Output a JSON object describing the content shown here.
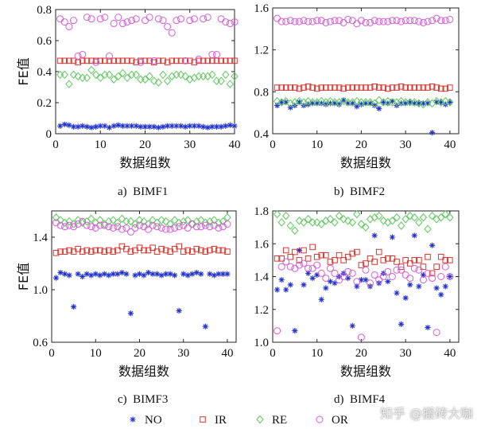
{
  "figure": {
    "watermark": "知乎 @搬砖大咖",
    "captions": [
      "a)  BIMF1",
      "b)  BIMF2",
      "c)  BIMF3",
      "d)  BIMF4"
    ],
    "legend": [
      {
        "name": "NO",
        "marker": "asterisk",
        "color": "#2233d0"
      },
      {
        "name": "IR",
        "marker": "square",
        "color": "#d8352e"
      },
      {
        "name": "RE",
        "marker": "diamond",
        "color": "#5cc85c"
      },
      {
        "name": "OR",
        "marker": "circle",
        "color": "#d65bd6"
      }
    ]
  },
  "chart_data": [
    {
      "type": "scatter",
      "title": "a)  BIMF1",
      "xlabel": "数据组数",
      "ylabel": "FE值",
      "xlim": [
        0,
        40
      ],
      "ylim": [
        0,
        0.8
      ],
      "grid": false,
      "xticks": [
        "0",
        "10",
        "20",
        "30",
        "40"
      ],
      "yticks": [
        "0",
        "0.2",
        "0.4",
        "0.6",
        "0.8"
      ],
      "x": [
        1,
        2,
        3,
        4,
        5,
        6,
        7,
        8,
        9,
        10,
        11,
        12,
        13,
        14,
        15,
        16,
        17,
        18,
        19,
        20,
        21,
        22,
        23,
        24,
        25,
        26,
        27,
        28,
        29,
        30,
        31,
        32,
        33,
        34,
        35,
        36,
        37,
        38,
        39,
        40
      ],
      "series": [
        {
          "name": "NO",
          "values": [
            0.05,
            0.06,
            0.055,
            0.045,
            0.045,
            0.05,
            0.045,
            0.04,
            0.045,
            0.05,
            0.05,
            0.04,
            0.05,
            0.055,
            0.05,
            0.05,
            0.05,
            0.05,
            0.045,
            0.045,
            0.045,
            0.045,
            0.04,
            0.045,
            0.05,
            0.05,
            0.05,
            0.05,
            0.045,
            0.05,
            0.05,
            0.05,
            0.045,
            0.04,
            0.045,
            0.045,
            0.045,
            0.05,
            0.055,
            0.05
          ]
        },
        {
          "name": "IR",
          "values": [
            0.47,
            0.47,
            0.47,
            0.47,
            0.46,
            0.47,
            0.47,
            0.47,
            0.47,
            0.47,
            0.47,
            0.47,
            0.47,
            0.47,
            0.47,
            0.47,
            0.47,
            0.46,
            0.47,
            0.47,
            0.47,
            0.46,
            0.47,
            0.47,
            0.46,
            0.47,
            0.47,
            0.47,
            0.47,
            0.47,
            0.46,
            0.47,
            0.47,
            0.47,
            0.47,
            0.47,
            0.47,
            0.47,
            0.47,
            0.47
          ]
        },
        {
          "name": "RE",
          "values": [
            0.38,
            0.38,
            0.32,
            0.38,
            0.37,
            0.36,
            0.36,
            0.41,
            0.38,
            0.36,
            0.38,
            0.38,
            0.35,
            0.37,
            0.39,
            0.36,
            0.38,
            0.38,
            0.35,
            0.35,
            0.37,
            0.34,
            0.33,
            0.38,
            0.34,
            0.37,
            0.38,
            0.38,
            0.37,
            0.35,
            0.36,
            0.37,
            0.37,
            0.37,
            0.38,
            0.34,
            0.34,
            0.38,
            0.32,
            0.37
          ]
        },
        {
          "name": "OR",
          "values": [
            0.74,
            0.72,
            0.69,
            0.73,
            0.5,
            0.51,
            0.75,
            0.74,
            0.46,
            0.74,
            0.75,
            0.5,
            0.71,
            0.75,
            0.71,
            0.72,
            0.73,
            0.74,
            0.46,
            0.73,
            0.75,
            0.47,
            0.74,
            0.73,
            0.69,
            0.65,
            0.73,
            0.74,
            0.47,
            0.73,
            0.74,
            0.48,
            0.74,
            0.75,
            0.51,
            0.51,
            0.74,
            0.72,
            0.71,
            0.72
          ]
        }
      ]
    },
    {
      "type": "scatter",
      "title": "b)  BIMF2",
      "xlabel": "数据组数",
      "ylabel": "",
      "xlim": [
        0,
        42
      ],
      "ylim": [
        0.4,
        1.6
      ],
      "grid": false,
      "xticks": [
        "0",
        "10",
        "20",
        "30",
        "40"
      ],
      "yticks": [
        "0.4",
        "0.8",
        "1.2",
        "1.6"
      ],
      "x": [
        1,
        2,
        3,
        4,
        5,
        6,
        7,
        8,
        9,
        10,
        11,
        12,
        13,
        14,
        15,
        16,
        17,
        18,
        19,
        20,
        21,
        22,
        23,
        24,
        25,
        26,
        27,
        28,
        29,
        30,
        31,
        32,
        33,
        34,
        35,
        36,
        37,
        38,
        39,
        40
      ],
      "series": [
        {
          "name": "NO",
          "values": [
            0.67,
            0.7,
            0.7,
            0.65,
            0.67,
            0.7,
            0.67,
            0.68,
            0.69,
            0.69,
            0.69,
            0.68,
            0.69,
            0.69,
            0.68,
            0.72,
            0.69,
            0.69,
            0.66,
            0.68,
            0.69,
            0.69,
            0.67,
            0.64,
            0.7,
            0.69,
            0.71,
            0.67,
            0.69,
            0.69,
            0.7,
            0.69,
            0.69,
            0.69,
            0.69,
            0.41,
            0.7,
            0.7,
            0.68,
            0.7
          ]
        },
        {
          "name": "IR",
          "values": [
            0.84,
            0.84,
            0.84,
            0.84,
            0.84,
            0.83,
            0.84,
            0.85,
            0.84,
            0.83,
            0.84,
            0.84,
            0.84,
            0.84,
            0.84,
            0.83,
            0.84,
            0.84,
            0.84,
            0.84,
            0.84,
            0.84,
            0.85,
            0.84,
            0.84,
            0.83,
            0.84,
            0.84,
            0.85,
            0.84,
            0.84,
            0.84,
            0.84,
            0.84,
            0.84,
            0.85,
            0.84,
            0.83,
            0.83,
            0.84
          ]
        },
        {
          "name": "RE",
          "values": [
            0.71,
            0.7,
            0.71,
            0.69,
            0.7,
            0.71,
            0.7,
            0.71,
            0.7,
            0.7,
            0.71,
            0.7,
            0.71,
            0.7,
            0.7,
            0.71,
            0.7,
            0.7,
            0.71,
            0.7,
            0.7,
            0.7,
            0.69,
            0.72,
            0.7,
            0.71,
            0.7,
            0.7,
            0.71,
            0.7,
            0.7,
            0.7,
            0.69,
            0.68,
            0.7,
            0.69,
            0.71,
            0.7,
            0.71,
            0.7
          ]
        },
        {
          "name": "OR",
          "values": [
            1.5,
            1.47,
            1.47,
            1.48,
            1.47,
            1.47,
            1.48,
            1.47,
            1.47,
            1.48,
            1.48,
            1.46,
            1.47,
            1.48,
            1.48,
            1.46,
            1.49,
            1.48,
            1.45,
            1.48,
            1.46,
            1.46,
            1.48,
            1.47,
            1.47,
            1.47,
            1.48,
            1.48,
            1.47,
            1.48,
            1.48,
            1.48,
            1.47,
            1.46,
            1.47,
            1.48,
            1.5,
            1.48,
            1.48,
            1.49
          ]
        }
      ]
    },
    {
      "type": "scatter",
      "title": "c)  BIMF3",
      "xlabel": "数据组数",
      "ylabel": "FE值",
      "xlim": [
        0,
        42
      ],
      "ylim": [
        0.6,
        1.6
      ],
      "grid": false,
      "xticks": [
        "0",
        "10",
        "20",
        "30",
        "40"
      ],
      "yticks": [
        "0.6",
        "1.0",
        "1.4"
      ],
      "x": [
        1,
        2,
        3,
        4,
        5,
        6,
        7,
        8,
        9,
        10,
        11,
        12,
        13,
        14,
        15,
        16,
        17,
        18,
        19,
        20,
        21,
        22,
        23,
        24,
        25,
        26,
        27,
        28,
        29,
        30,
        31,
        32,
        33,
        34,
        35,
        36,
        37,
        38,
        39,
        40
      ],
      "series": [
        {
          "name": "NO",
          "values": [
            1.09,
            1.13,
            1.12,
            1.11,
            0.87,
            1.12,
            1.1,
            1.12,
            1.11,
            1.12,
            1.11,
            1.12,
            1.11,
            1.12,
            1.12,
            1.13,
            1.12,
            0.82,
            1.11,
            1.12,
            1.11,
            1.13,
            1.12,
            1.12,
            1.11,
            1.12,
            1.12,
            1.11,
            0.84,
            1.12,
            1.11,
            1.12,
            1.13,
            1.12,
            0.72,
            1.12,
            1.11,
            1.12,
            1.12,
            1.12
          ]
        },
        {
          "name": "IR",
          "values": [
            1.28,
            1.29,
            1.29,
            1.3,
            1.29,
            1.31,
            1.29,
            1.3,
            1.29,
            1.3,
            1.3,
            1.29,
            1.3,
            1.29,
            1.3,
            1.33,
            1.31,
            1.29,
            1.3,
            1.32,
            1.3,
            1.3,
            1.32,
            1.29,
            1.31,
            1.3,
            1.29,
            1.31,
            1.33,
            1.29,
            1.3,
            1.29,
            1.31,
            1.3,
            1.29,
            1.3,
            1.31,
            1.3,
            1.3,
            1.29
          ]
        },
        {
          "name": "RE",
          "values": [
            1.55,
            1.53,
            1.51,
            1.52,
            1.5,
            1.53,
            1.51,
            1.52,
            1.54,
            1.51,
            1.53,
            1.5,
            1.52,
            1.53,
            1.51,
            1.54,
            1.52,
            1.52,
            1.5,
            1.53,
            1.52,
            1.5,
            1.53,
            1.51,
            1.53,
            1.52,
            1.5,
            1.53,
            1.51,
            1.52,
            1.53,
            1.5,
            1.52,
            1.53,
            1.51,
            1.52,
            1.53,
            1.51,
            1.52,
            1.55
          ]
        },
        {
          "name": "OR",
          "values": [
            1.51,
            1.49,
            1.48,
            1.49,
            1.48,
            1.5,
            1.52,
            1.49,
            1.48,
            1.47,
            1.49,
            1.49,
            1.48,
            1.47,
            1.48,
            1.46,
            1.47,
            1.44,
            1.47,
            1.49,
            1.48,
            1.46,
            1.49,
            1.48,
            1.47,
            1.46,
            1.46,
            1.47,
            1.48,
            1.49,
            1.47,
            1.5,
            1.48,
            1.48,
            1.49,
            1.48,
            1.49,
            1.47,
            1.48,
            1.5
          ]
        }
      ]
    },
    {
      "type": "scatter",
      "title": "d)  BIMF4",
      "xlabel": "数据组数",
      "ylabel": "",
      "xlim": [
        0,
        42
      ],
      "ylim": [
        1.0,
        1.8
      ],
      "grid": false,
      "xticks": [
        "0",
        "10",
        "20",
        "30",
        "40"
      ],
      "yticks": [
        "1.0",
        "1.2",
        "1.4",
        "1.6",
        "1.8"
      ],
      "x": [
        1,
        2,
        3,
        4,
        5,
        6,
        7,
        8,
        9,
        10,
        11,
        12,
        13,
        14,
        15,
        16,
        17,
        18,
        19,
        20,
        21,
        22,
        23,
        24,
        25,
        26,
        27,
        28,
        29,
        30,
        31,
        32,
        33,
        34,
        35,
        36,
        37,
        38,
        39,
        40
      ],
      "series": [
        {
          "name": "NO",
          "values": [
            1.32,
            1.38,
            1.32,
            1.35,
            1.07,
            1.56,
            1.35,
            1.42,
            1.39,
            1.41,
            1.26,
            1.33,
            1.37,
            1.36,
            1.4,
            1.42,
            1.39,
            1.1,
            1.34,
            1.38,
            1.38,
            1.34,
            1.65,
            1.36,
            1.42,
            1.37,
            1.64,
            1.3,
            1.11,
            1.27,
            1.35,
            1.65,
            1.34,
            1.41,
            1.09,
            1.59,
            1.33,
            1.29,
            1.34,
            1.4
          ]
        },
        {
          "name": "IR",
          "values": [
            1.51,
            1.51,
            1.56,
            1.52,
            1.55,
            1.5,
            1.56,
            1.51,
            1.58,
            1.52,
            1.53,
            1.53,
            1.49,
            1.5,
            1.53,
            1.5,
            1.52,
            1.54,
            1.55,
            1.47,
            1.48,
            1.51,
            1.49,
            1.55,
            1.5,
            1.51,
            1.51,
            1.49,
            1.46,
            1.5,
            1.48,
            1.5,
            1.5,
            1.46,
            1.52,
            1.42,
            1.46,
            1.52,
            1.5,
            1.5
          ]
        },
        {
          "name": "RE",
          "values": [
            1.78,
            1.73,
            1.77,
            1.71,
            1.68,
            1.74,
            1.73,
            1.75,
            1.73,
            1.73,
            1.72,
            1.74,
            1.75,
            1.73,
            1.77,
            1.75,
            1.74,
            1.73,
            1.78,
            1.72,
            1.7,
            1.75,
            1.76,
            1.77,
            1.74,
            1.73,
            1.74,
            1.76,
            1.71,
            1.75,
            1.77,
            1.76,
            1.73,
            1.76,
            1.69,
            1.77,
            1.75,
            1.76,
            1.78,
            1.76
          ]
        },
        {
          "name": "OR",
          "values": [
            1.07,
            1.46,
            1.49,
            1.46,
            1.45,
            1.47,
            1.48,
            1.45,
            1.45,
            1.47,
            1.42,
            1.39,
            1.45,
            1.42,
            1.38,
            1.4,
            1.43,
            1.42,
            1.37,
            1.03,
            1.44,
            1.36,
            1.41,
            1.38,
            1.4,
            1.43,
            1.4,
            1.44,
            1.44,
            1.41,
            1.39,
            1.45,
            1.44,
            1.38,
            1.42,
            1.39,
            1.06,
            1.4,
            1.46,
            1.4
          ]
        }
      ]
    }
  ]
}
